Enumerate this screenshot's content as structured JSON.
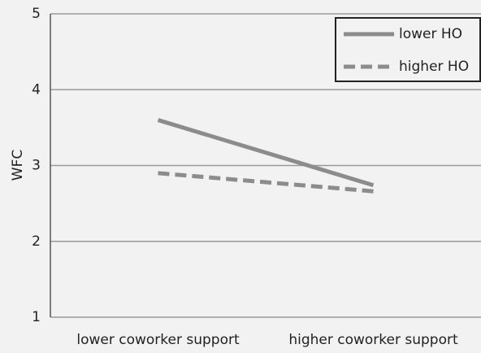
{
  "chart_data": {
    "type": "line",
    "ylabel": "WFC",
    "categories": [
      "lower coworker support",
      "higher coworker support"
    ],
    "series": [
      {
        "name": "lower HO",
        "color": "#8c8c8c",
        "dash": false,
        "values": [
          3.6,
          2.74
        ]
      },
      {
        "name": "higher HO",
        "color": "#8c8c8c",
        "dash": true,
        "values": [
          2.9,
          2.66
        ]
      }
    ],
    "ylim": [
      1,
      5
    ],
    "yticks": [
      1,
      2,
      3,
      4,
      5
    ],
    "grid": true,
    "legend": "top-right"
  }
}
